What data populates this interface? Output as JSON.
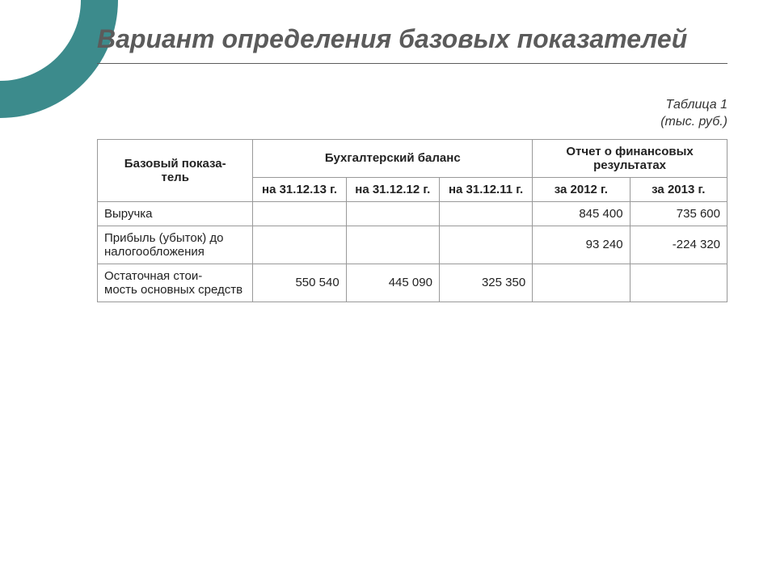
{
  "colors": {
    "accent": "#3c8b8c",
    "title_text": "#5b5b5b",
    "border": "#999999",
    "background": "#ffffff",
    "text": "#222222"
  },
  "typography": {
    "title_fontsize": 32,
    "body_fontsize": 15,
    "caption_fontsize": 16,
    "font_family": "Arial"
  },
  "title": "Вариант определения базовых показателей",
  "caption": {
    "line1": "Таблица 1",
    "line2": "(тыс. руб.)"
  },
  "table": {
    "type": "table",
    "header": {
      "indicator": "Базовый показа-\nтель",
      "group_balance": "Бухгалтерский баланс",
      "group_finreport": "Отчет о финансовых результатах",
      "balance_dates": [
        "на 31.12.13 г.",
        "на 31.12.12 г.",
        "на 31.12.11 г."
      ],
      "fin_periods": [
        "за 2012 г.",
        "за 2013 г."
      ]
    },
    "rows": [
      {
        "label": "Выручка",
        "balance": [
          "",
          "",
          ""
        ],
        "fin": [
          "845 400",
          "735 600"
        ]
      },
      {
        "label": "Прибыль (убыток) до налогообложения",
        "balance": [
          "",
          "",
          ""
        ],
        "fin": [
          "93 240",
          "-224 320"
        ]
      },
      {
        "label": "Остаточная стои-\nмость основных средств",
        "balance": [
          "550 540",
          "445 090",
          "325 350"
        ],
        "fin": [
          "",
          ""
        ]
      }
    ]
  }
}
